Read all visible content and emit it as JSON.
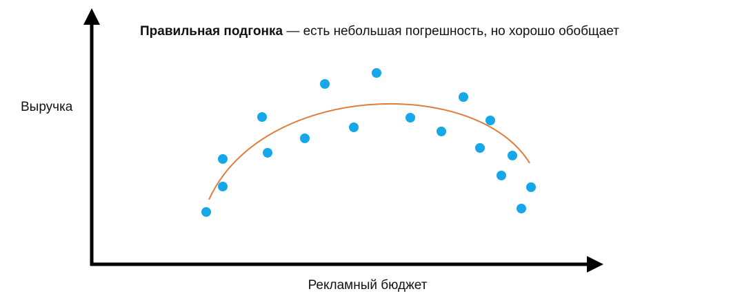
{
  "title": {
    "bold": "Правильная подгонка",
    "rest": " — есть небольшая погрешность, но хорошо обобщает"
  },
  "axes": {
    "y_label": "Выручка",
    "x_label": "Рекламный бюджет"
  }
}
